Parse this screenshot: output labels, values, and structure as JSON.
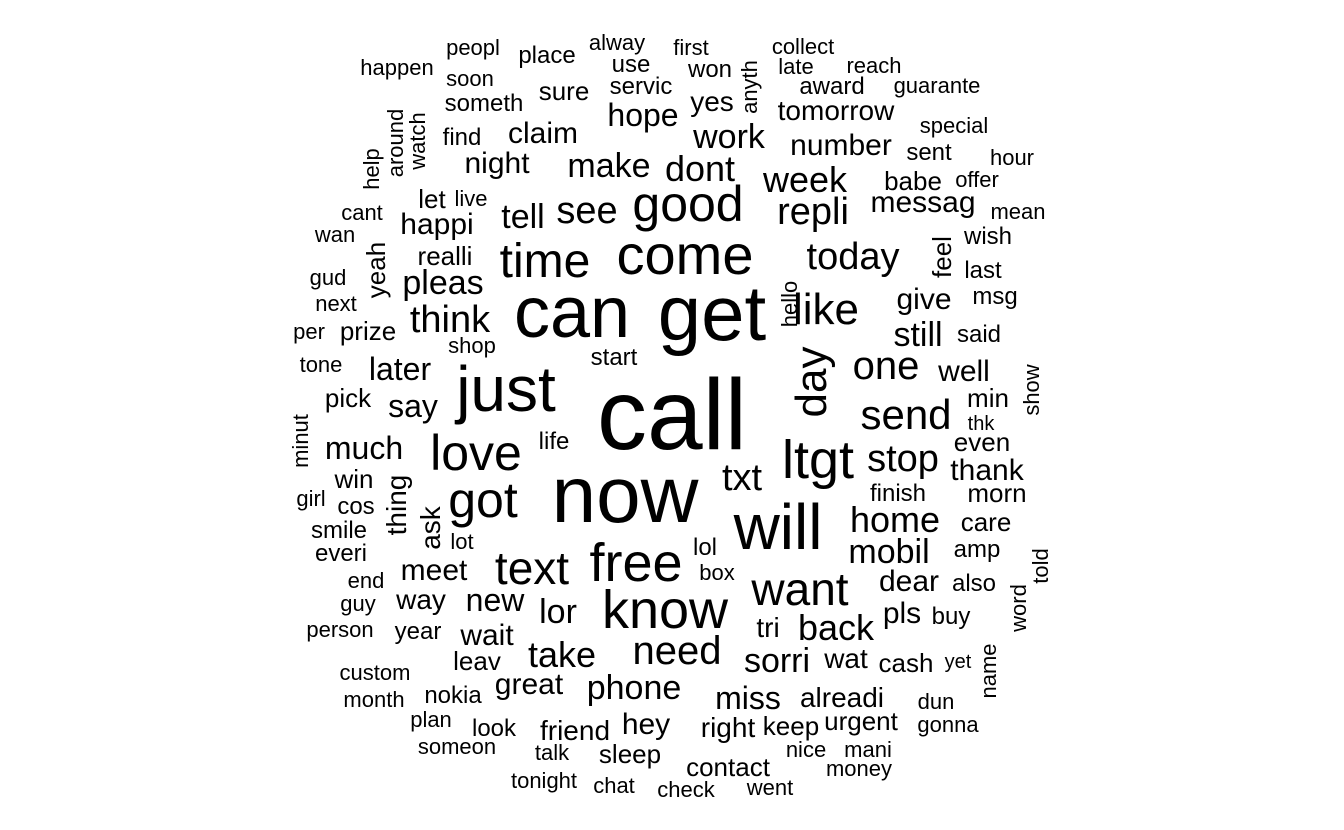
{
  "colors": {
    "text": "#000000",
    "background": "#ffffff"
  },
  "chart_data": {
    "type": "wordcloud",
    "words": [
      {
        "text": "call",
        "size": 100
      },
      {
        "text": "now",
        "size": 80
      },
      {
        "text": "get",
        "size": 78
      },
      {
        "text": "can",
        "size": 72
      },
      {
        "text": "just",
        "size": 64
      },
      {
        "text": "will",
        "size": 64
      },
      {
        "text": "come",
        "size": 56
      },
      {
        "text": "know",
        "size": 54
      },
      {
        "text": "free",
        "size": 54
      },
      {
        "text": "good",
        "size": 50
      },
      {
        "text": "ltgt",
        "size": 54
      },
      {
        "text": "time",
        "size": 48
      },
      {
        "text": "love",
        "size": 50
      },
      {
        "text": "got",
        "size": 50
      },
      {
        "text": "want",
        "size": 46
      },
      {
        "text": "text",
        "size": 46
      },
      {
        "text": "day",
        "size": 44,
        "vertical": true
      },
      {
        "text": "like",
        "size": 44
      },
      {
        "text": "send",
        "size": 42
      },
      {
        "text": "need",
        "size": 40
      },
      {
        "text": "one",
        "size": 40
      },
      {
        "text": "today",
        "size": 38
      },
      {
        "text": "stop",
        "size": 38
      },
      {
        "text": "think",
        "size": 38
      },
      {
        "text": "see",
        "size": 38
      },
      {
        "text": "repli",
        "size": 38
      },
      {
        "text": "txt",
        "size": 38
      },
      {
        "text": "home",
        "size": 36
      },
      {
        "text": "take",
        "size": 36
      },
      {
        "text": "dont",
        "size": 36
      },
      {
        "text": "week",
        "size": 36
      },
      {
        "text": "back",
        "size": 36
      },
      {
        "text": "sorri",
        "size": 34
      },
      {
        "text": "mobil",
        "size": 34
      },
      {
        "text": "make",
        "size": 34
      },
      {
        "text": "tell",
        "size": 34
      },
      {
        "text": "pleas",
        "size": 34
      },
      {
        "text": "work",
        "size": 34
      },
      {
        "text": "phone",
        "size": 34
      },
      {
        "text": "lor",
        "size": 34
      },
      {
        "text": "still",
        "size": 34
      },
      {
        "text": "say",
        "size": 32
      },
      {
        "text": "much",
        "size": 32
      },
      {
        "text": "later",
        "size": 32
      },
      {
        "text": "hope",
        "size": 32
      },
      {
        "text": "great",
        "size": 30
      },
      {
        "text": "claim",
        "size": 30
      },
      {
        "text": "give",
        "size": 30
      },
      {
        "text": "happi",
        "size": 30
      },
      {
        "text": "messag",
        "size": 30
      },
      {
        "text": "night",
        "size": 30
      },
      {
        "text": "new",
        "size": 32
      },
      {
        "text": "miss",
        "size": 32
      },
      {
        "text": "dear",
        "size": 30
      },
      {
        "text": "meet",
        "size": 30
      },
      {
        "text": "well",
        "size": 30
      },
      {
        "text": "thank",
        "size": 30
      },
      {
        "text": "number",
        "size": 30
      },
      {
        "text": "wait",
        "size": 30
      },
      {
        "text": "hey",
        "size": 30
      },
      {
        "text": "pls",
        "size": 30
      },
      {
        "text": "friend",
        "size": 28
      },
      {
        "text": "alreadi",
        "size": 28
      },
      {
        "text": "tomorrow",
        "size": 28
      },
      {
        "text": "way",
        "size": 28
      },
      {
        "text": "thing",
        "size": 28,
        "vertical": true
      },
      {
        "text": "right",
        "size": 28
      },
      {
        "text": "wat",
        "size": 28
      },
      {
        "text": "ask",
        "size": 28,
        "vertical": true
      },
      {
        "text": "yes",
        "size": 28
      },
      {
        "text": "tri",
        "size": 28
      },
      {
        "text": "even",
        "size": 26
      },
      {
        "text": "min",
        "size": 26
      },
      {
        "text": "win",
        "size": 26
      },
      {
        "text": "leav",
        "size": 26
      },
      {
        "text": "keep",
        "size": 26
      },
      {
        "text": "urgent",
        "size": 26
      },
      {
        "text": "realli",
        "size": 26
      },
      {
        "text": "prize",
        "size": 26
      },
      {
        "text": "pick",
        "size": 26
      },
      {
        "text": "babe",
        "size": 26
      },
      {
        "text": "care",
        "size": 26
      },
      {
        "text": "sleep",
        "size": 26
      },
      {
        "text": "contact",
        "size": 26
      },
      {
        "text": "yeah",
        "size": 26,
        "vertical": true
      },
      {
        "text": "feel",
        "size": 26,
        "vertical": true
      },
      {
        "text": "morn",
        "size": 26
      },
      {
        "text": "cash",
        "size": 26
      },
      {
        "text": "amp",
        "size": 24
      },
      {
        "text": "sure",
        "size": 26
      },
      {
        "text": "let",
        "size": 26
      },
      {
        "text": "award",
        "size": 24
      },
      {
        "text": "servic",
        "size": 24
      },
      {
        "text": "year",
        "size": 24
      },
      {
        "text": "wish",
        "size": 24
      },
      {
        "text": "last",
        "size": 24
      },
      {
        "text": "msg",
        "size": 24
      },
      {
        "text": "said",
        "size": 24
      },
      {
        "text": "buy",
        "size": 24
      },
      {
        "text": "life",
        "size": 24
      },
      {
        "text": "lol",
        "size": 24
      },
      {
        "text": "nokia",
        "size": 24
      },
      {
        "text": "look",
        "size": 24
      },
      {
        "text": "sent",
        "size": 24
      },
      {
        "text": "place",
        "size": 24
      },
      {
        "text": "find",
        "size": 24
      },
      {
        "text": "everi",
        "size": 24
      },
      {
        "text": "smile",
        "size": 24
      },
      {
        "text": "cos",
        "size": 24
      },
      {
        "text": "start",
        "size": 24
      },
      {
        "text": "use",
        "size": 24
      },
      {
        "text": "someth",
        "size": 24
      },
      {
        "text": "also",
        "size": 24
      },
      {
        "text": "finish",
        "size": 24
      },
      {
        "text": "won",
        "size": 24
      },
      {
        "text": "nice",
        "size": 22
      },
      {
        "text": "money",
        "size": 22
      },
      {
        "text": "mani",
        "size": 22
      },
      {
        "text": "tonight",
        "size": 22
      },
      {
        "text": "talk",
        "size": 22
      },
      {
        "text": "chat",
        "size": 22
      },
      {
        "text": "went",
        "size": 22
      },
      {
        "text": "check",
        "size": 22
      },
      {
        "text": "someon",
        "size": 22
      },
      {
        "text": "plan",
        "size": 22
      },
      {
        "text": "dun",
        "size": 22
      },
      {
        "text": "gonna",
        "size": 22
      },
      {
        "text": "month",
        "size": 22
      },
      {
        "text": "custom",
        "size": 22
      },
      {
        "text": "person",
        "size": 22
      },
      {
        "text": "guy",
        "size": 22
      },
      {
        "text": "end",
        "size": 22
      },
      {
        "text": "lot",
        "size": 22
      },
      {
        "text": "box",
        "size": 22
      },
      {
        "text": "girl",
        "size": 22
      },
      {
        "text": "tone",
        "size": 22
      },
      {
        "text": "per",
        "size": 22
      },
      {
        "text": "next",
        "size": 22
      },
      {
        "text": "gud",
        "size": 22
      },
      {
        "text": "wan",
        "size": 22
      },
      {
        "text": "cant",
        "size": 22
      },
      {
        "text": "live",
        "size": 22
      },
      {
        "text": "shop",
        "size": 22
      },
      {
        "text": "hour",
        "size": 22
      },
      {
        "text": "offer",
        "size": 22
      },
      {
        "text": "mean",
        "size": 22
      },
      {
        "text": "special",
        "size": 22
      },
      {
        "text": "guarante",
        "size": 22
      },
      {
        "text": "reach",
        "size": 22
      },
      {
        "text": "collect",
        "size": 22
      },
      {
        "text": "late",
        "size": 22
      },
      {
        "text": "first",
        "size": 22
      },
      {
        "text": "alway",
        "size": 22
      },
      {
        "text": "peopl",
        "size": 22
      },
      {
        "text": "soon",
        "size": 22
      },
      {
        "text": "happen",
        "size": 22
      },
      {
        "text": "thk",
        "size": 20
      },
      {
        "text": "yet",
        "size": 20
      },
      {
        "text": "anyth",
        "size": 22,
        "vertical": true
      },
      {
        "text": "around",
        "size": 22,
        "vertical": true
      },
      {
        "text": "watch",
        "size": 22,
        "vertical": true
      },
      {
        "text": "help",
        "size": 22,
        "vertical": true
      },
      {
        "text": "hello",
        "size": 22,
        "vertical": true
      },
      {
        "text": "minut",
        "size": 22,
        "vertical": true
      },
      {
        "text": "show",
        "size": 22,
        "vertical": true
      },
      {
        "text": "told",
        "size": 22,
        "vertical": true
      },
      {
        "text": "word",
        "size": 22,
        "vertical": true
      },
      {
        "text": "name",
        "size": 22,
        "vertical": true
      }
    ]
  }
}
